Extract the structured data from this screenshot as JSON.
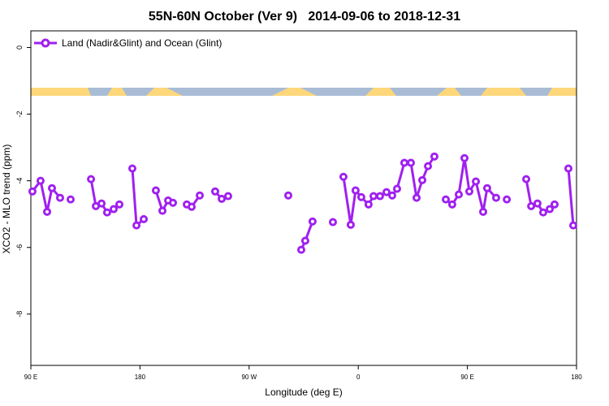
{
  "chart_data": {
    "type": "line",
    "title": "55N-60N October (Ver 9)   2014-09-06 to 2018-12-31",
    "x_label": "Longitude (deg E)",
    "y_label": "XCO2 - MLO trend (ppm)",
    "xlim": [
      90,
      540
    ],
    "ylim": [
      -9.54,
      0.5
    ],
    "xticks": [
      {
        "value": 90,
        "label": "90 E"
      },
      180,
      {
        "value": 270,
        "label": "90 W"
      },
      {
        "value": 360,
        "label": "0"
      },
      {
        "value": 450,
        "label": "90 E"
      },
      {
        "value": 540,
        "label": "180"
      }
    ],
    "yticks": [
      0,
      -2,
      -4,
      -6,
      -8
    ],
    "legend": "top-left",
    "series": [
      {
        "name": "Land (Nadir&Glint) and Ocean (Glint)",
        "color": "#a020f0",
        "x": [
          91.3,
          98.0,
          103.4,
          107.4,
          114.1,
          null,
          122.8,
          null,
          139.6,
          143.6,
          148.3,
          152.9,
          158.3,
          163.0,
          null,
          173.7,
          177.1,
          183.1,
          null,
          193.1,
          198.5,
          203.2,
          207.2,
          null,
          218.6,
          222.6,
          229.3,
          null,
          242.0,
          247.4,
          252.7,
          null,
          302.3,
          null,
          313.0,
          316.3,
          322.3,
          null,
          339.1,
          null,
          347.8,
          353.8,
          357.8,
          362.5,
          368.5,
          372.6,
          377.9,
          383.3,
          388.0,
          392.0,
          398.0,
          403.4,
          408.1,
          412.8,
          417.5,
          422.8,
          null,
          432.2,
          437.5,
          442.9,
          447.6,
          451.6,
          457.0,
          463.0,
          466.3,
          473.7,
          null,
          482.5,
          null,
          498.5,
          502.6,
          507.8,
          512.5,
          517.9,
          521.9,
          null,
          533.3,
          537.3
        ],
        "values": [
          -4.32,
          -4.0,
          -4.93,
          -4.22,
          -4.51,
          null,
          -4.56,
          null,
          -3.95,
          -4.76,
          -4.68,
          -4.95,
          -4.85,
          -4.71,
          null,
          -3.63,
          -5.34,
          -5.15,
          null,
          -4.29,
          -4.9,
          -4.59,
          -4.66,
          null,
          -4.71,
          -4.78,
          -4.44,
          null,
          -4.32,
          -4.54,
          -4.46,
          null,
          -4.44,
          null,
          -6.07,
          -5.8,
          -5.22,
          null,
          -5.24,
          null,
          -3.88,
          -5.32,
          -4.29,
          -4.49,
          -4.71,
          -4.46,
          -4.46,
          -4.34,
          -4.44,
          -4.24,
          -3.46,
          -3.46,
          -4.51,
          -3.98,
          -3.56,
          -3.27,
          null,
          -4.56,
          -4.71,
          -4.41,
          -3.32,
          -4.32,
          -4.02,
          -4.93,
          -4.22,
          -4.51,
          null,
          -4.56,
          null,
          -3.95,
          -4.76,
          -4.68,
          -4.95,
          -4.85,
          -4.71,
          null,
          -3.63,
          -5.34
        ]
      }
    ]
  }
}
